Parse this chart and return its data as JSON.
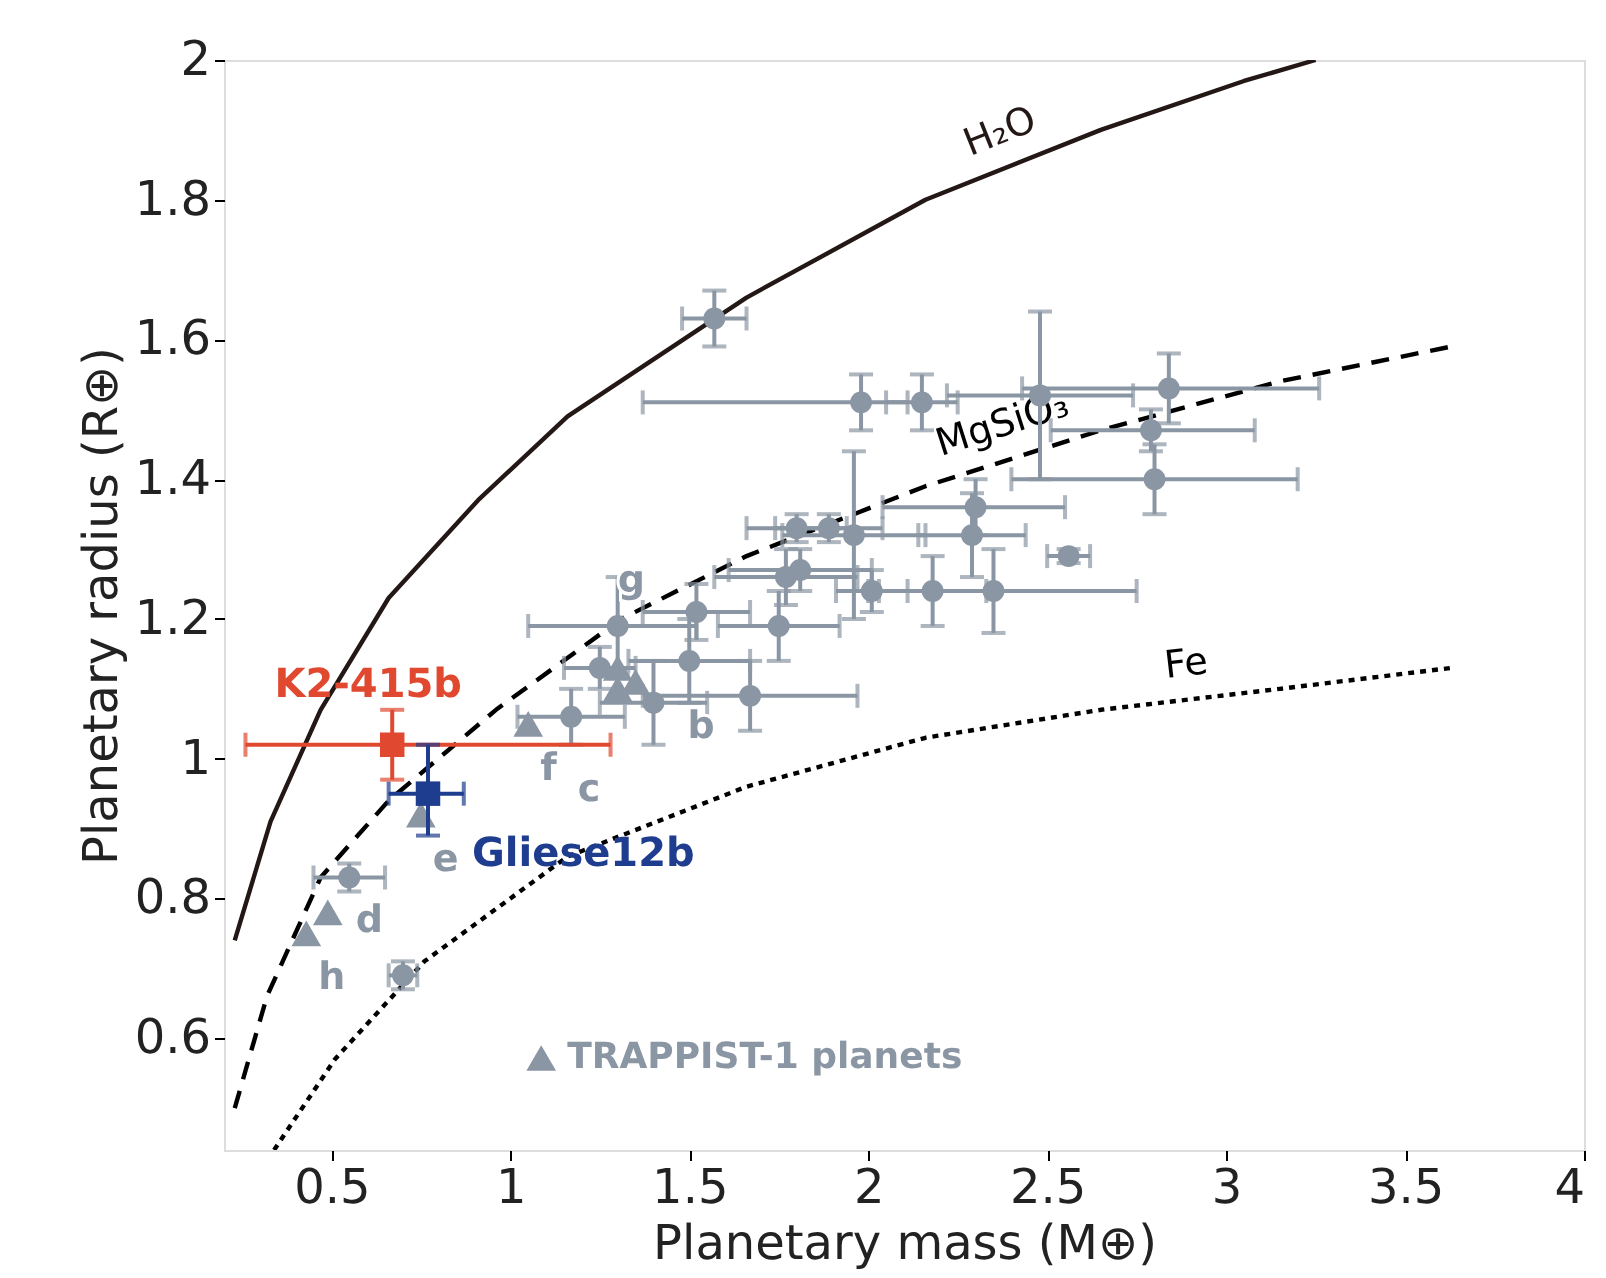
{
  "chart_data": {
    "type": "scatter",
    "xlabel": "Planetary mass (M⊕)",
    "ylabel": "Planetary radius (R⊕)",
    "xlim": [
      0.2,
      4
    ],
    "xticks": [
      0.5,
      1,
      1.5,
      2,
      2.5,
      3,
      3.5,
      4
    ],
    "ylim": [
      0.44,
      2
    ],
    "yticks": [
      0.6,
      0.8,
      1,
      1.2,
      1.4,
      1.6,
      1.8,
      2
    ],
    "grid": false,
    "legend": "bottom",
    "series": [
      {
        "type": "line",
        "name": "H₂O",
        "color": "#231815",
        "line_style": "solid",
        "marker": "none",
        "x": [
          0.23,
          0.33,
          0.47,
          0.66,
          0.91,
          1.16,
          1.66,
          2.16,
          2.65,
          3.05,
          3.25
        ],
        "values": [
          0.74,
          0.91,
          1.07,
          1.23,
          1.37,
          1.49,
          1.66,
          1.8,
          1.9,
          1.97,
          2.0
        ]
      },
      {
        "type": "line",
        "name": "MgSiO₃",
        "color": "#000000",
        "line_style": "dashed",
        "marker": "none",
        "x": [
          0.23,
          0.32,
          0.47,
          0.66,
          0.96,
          1.31,
          1.66,
          2.16,
          2.65,
          3.15,
          3.63
        ],
        "values": [
          0.5,
          0.66,
          0.83,
          0.94,
          1.07,
          1.2,
          1.29,
          1.39,
          1.47,
          1.54,
          1.59
        ]
      },
      {
        "type": "line",
        "name": "Fe",
        "color": "#000000",
        "line_style": "dotted",
        "marker": "none",
        "x": [
          0.34,
          0.51,
          0.76,
          1.16,
          1.66,
          2.16,
          2.65,
          3.15,
          3.63
        ],
        "values": [
          0.44,
          0.57,
          0.71,
          0.86,
          0.96,
          1.03,
          1.07,
          1.1,
          1.13
        ]
      },
      {
        "color": "#8a96a3",
        "marker": "circle",
        "x": [
          1.57,
          1.98,
          2.15,
          2.48,
          2.84,
          2.79,
          2.8,
          2.56,
          2.3,
          2.29,
          1.89,
          1.96,
          2.01,
          2.18,
          2.35,
          1.8,
          1.77,
          1.81,
          1.52,
          1.75,
          1.3,
          1.5,
          1.25,
          1.4,
          1.17,
          1.67,
          0.55,
          0.7
        ],
        "values": [
          1.63,
          1.51,
          1.51,
          1.52,
          1.53,
          1.47,
          1.4,
          1.29,
          1.36,
          1.32,
          1.33,
          1.32,
          1.24,
          1.24,
          1.24,
          1.33,
          1.26,
          1.27,
          1.21,
          1.19,
          1.19,
          1.14,
          1.13,
          1.08,
          1.06,
          1.09,
          0.83,
          0.69
        ],
        "xerrors": [
          0.09,
          [
            1.37,
            2.11
          ],
          0.1,
          [
            2.22,
            2.74
          ],
          [
            2.43,
            3.26
          ],
          [
            2.51,
            3.08
          ],
          [
            2.4,
            3.2
          ],
          0.06,
          [
            2.04,
            2.55
          ],
          0.15,
          0.15,
          0.2,
          0.1,
          0.15,
          [
            2.0,
            2.75
          ],
          0.14,
          0.2,
          0.2,
          0.15,
          0.17,
          [
            1.05,
            1.52
          ],
          0.17,
          0.1,
          0.15,
          0.15,
          0.3,
          0.1,
          0.04
        ],
        "errors": [
          0.04,
          0.04,
          0.04,
          [
            1.4,
            1.64
          ],
          0.05,
          0.03,
          0.05,
          0.01,
          0.04,
          0.06,
          0.02,
          [
            1.2,
            1.44
          ],
          0.03,
          0.05,
          0.06,
          0.02,
          0.04,
          0.03,
          0.04,
          0.05,
          0.07,
          0.06,
          0.03,
          0.06,
          0.04,
          0.05,
          0.02,
          0.02
        ]
      },
      {
        "name": "TRAPPIST-1 planets",
        "color": "#8a96a3",
        "marker": "triangle",
        "x": [
          0.43,
          0.49,
          0.75,
          1.05,
          1.3,
          1.3,
          1.35
        ],
        "values": [
          0.75,
          0.78,
          0.92,
          1.05,
          1.1,
          1.13,
          1.11
        ]
      },
      {
        "name": "K2-415b",
        "color": "#e0492f",
        "marker": "square",
        "x": [
          0.67
        ],
        "values": [
          1.02
        ],
        "xerrors": [
          [
            0.26,
            1.28
          ]
        ],
        "errors": [
          [
            0.97,
            1.07
          ]
        ]
      },
      {
        "name": "Gliese12b",
        "color": "#1f3d8f",
        "marker": "square",
        "x": [
          0.77
        ],
        "values": [
          0.95
        ],
        "xerrors": [
          [
            0.66,
            0.87
          ]
        ],
        "errors": [
          [
            0.89,
            1.02
          ]
        ]
      }
    ],
    "annotations": [
      {
        "text": "h",
        "x": 0.43,
        "y": 0.75
      },
      {
        "text": "d",
        "x": 0.49,
        "y": 0.78
      },
      {
        "text": "e",
        "x": 0.75,
        "y": 0.92
      },
      {
        "text": "f",
        "x": 1.05,
        "y": 1.05
      },
      {
        "text": "c",
        "x": 1.3,
        "y": 1.1
      },
      {
        "text": "g",
        "x": 1.3,
        "y": 1.13
      },
      {
        "text": "b",
        "x": 1.35,
        "y": 1.11
      }
    ]
  }
}
